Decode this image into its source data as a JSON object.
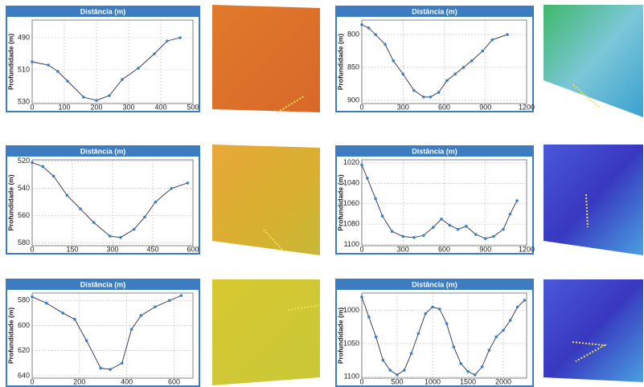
{
  "chart_data": [
    {
      "type": "line",
      "title": "Distância (m)",
      "y_label": "Profundidade (m)",
      "color": "#2b2f4a",
      "marker_color": "#3a7fc8",
      "grid": true,
      "invert_y": true,
      "x": [
        0,
        50,
        80,
        110,
        160,
        200,
        240,
        280,
        330,
        380,
        420,
        460
      ],
      "values": [
        505,
        507,
        511,
        517,
        527,
        529,
        526,
        516,
        509,
        500,
        492,
        490
      ],
      "xlim": [
        0,
        500
      ],
      "xticks": [
        0,
        100,
        200,
        300,
        400,
        500
      ],
      "ylim": [
        479,
        531
      ],
      "yticks": [
        490,
        510,
        530
      ]
    },
    {
      "type": "line",
      "title": "Distância (m)",
      "y_label": "Profundidade (m)",
      "color": "#2b2f4a",
      "marker_color": "#3a7fc8",
      "grid": true,
      "invert_y": true,
      "x": [
        0,
        50,
        100,
        170,
        230,
        300,
        380,
        450,
        500,
        560,
        620,
        680,
        740,
        800,
        880,
        950,
        1060
      ],
      "values": [
        785,
        790,
        800,
        815,
        840,
        860,
        885,
        895,
        895,
        888,
        870,
        860,
        850,
        840,
        825,
        808,
        800
      ],
      "xlim": [
        0,
        1200
      ],
      "xticks": [
        0,
        300,
        600,
        900,
        1200
      ],
      "ylim": [
        778,
        905
      ],
      "yticks": [
        800,
        850,
        900
      ]
    },
    {
      "type": "line",
      "title": "Distância (m)",
      "y_label": "Profundidade (m)",
      "color": "#2b2f4a",
      "marker_color": "#3a7fc8",
      "grid": true,
      "invert_y": true,
      "x": [
        0,
        40,
        80,
        130,
        180,
        230,
        290,
        330,
        380,
        420,
        460,
        520,
        580
      ],
      "values": [
        521,
        524,
        531,
        545,
        555,
        565,
        575,
        576,
        570,
        561,
        550,
        540,
        536
      ],
      "xlim": [
        0,
        600
      ],
      "xticks": [
        0,
        150,
        300,
        450,
        600
      ],
      "ylim": [
        519,
        582
      ],
      "yticks": [
        520,
        540,
        560,
        580
      ]
    },
    {
      "type": "line",
      "title": "Distância (m)",
      "y_label": "Profundidade (m)",
      "color": "#2b2f4a",
      "marker_color": "#3a7fc8",
      "grid": true,
      "invert_y": true,
      "x": [
        0,
        40,
        100,
        150,
        220,
        300,
        380,
        450,
        520,
        580,
        640,
        700,
        760,
        830,
        900,
        960,
        1030,
        1080,
        1130
      ],
      "values": [
        1022,
        1035,
        1055,
        1072,
        1087,
        1092,
        1093,
        1091,
        1083,
        1075,
        1081,
        1085,
        1082,
        1090,
        1094,
        1092,
        1085,
        1070,
        1057
      ],
      "xlim": [
        0,
        1200
      ],
      "xticks": [
        0,
        300,
        600,
        900,
        1200
      ],
      "ylim": [
        1017,
        1101
      ],
      "yticks": [
        1020,
        1040,
        1060,
        1080,
        1100
      ]
    },
    {
      "type": "line",
      "title": "Distância (m)",
      "y_label": "Profundidade (m)",
      "color": "#2b2f4a",
      "marker_color": "#3a7fc8",
      "grid": true,
      "invert_y": true,
      "x": [
        0,
        60,
        130,
        180,
        230,
        290,
        330,
        380,
        420,
        460,
        520,
        580,
        630
      ],
      "values": [
        577,
        582,
        590,
        595,
        612,
        634,
        635,
        630,
        603,
        592,
        585,
        580,
        576
      ],
      "xlim": [
        0,
        680
      ],
      "xticks": [
        0,
        200,
        400,
        600
      ],
      "ylim": [
        574,
        642
      ],
      "yticks": [
        580,
        600,
        620,
        640
      ]
    },
    {
      "type": "line",
      "title": "Distância (m)",
      "y_label": "Profundidade (m)",
      "color": "#2b2f4a",
      "marker_color": "#3a7fc8",
      "grid": true,
      "invert_y": true,
      "x": [
        0,
        100,
        200,
        300,
        400,
        500,
        600,
        700,
        800,
        900,
        1000,
        1100,
        1200,
        1300,
        1400,
        1500,
        1600,
        1700,
        1800,
        1900,
        2000,
        2100,
        2200,
        2300
      ],
      "values": [
        980,
        1010,
        1040,
        1075,
        1090,
        1097,
        1090,
        1065,
        1035,
        1005,
        995,
        998,
        1020,
        1055,
        1080,
        1092,
        1097,
        1085,
        1060,
        1040,
        1030,
        1015,
        995,
        985
      ],
      "xlim": [
        0,
        2330
      ],
      "xticks": [
        0,
        500,
        1000,
        1500,
        2000
      ],
      "ylim": [
        974,
        1102
      ],
      "yticks": [
        1000,
        1050,
        1100
      ]
    }
  ]
}
